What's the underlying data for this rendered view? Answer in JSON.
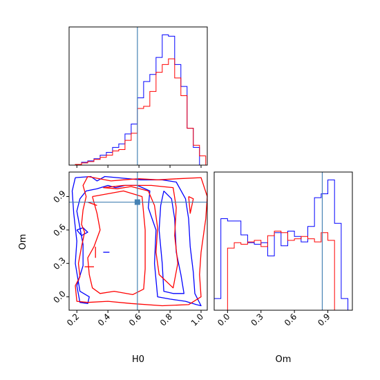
{
  "chart_data": {
    "type": "corner",
    "colors": {
      "series_a": "#0000ff",
      "series_b": "#ff0000",
      "truth": "#4682b4",
      "frame": "#000000"
    },
    "parameters": [
      "H0",
      "Om"
    ],
    "truth": {
      "H0": 0.59,
      "Om": 0.85
    },
    "H0_axis": {
      "label": "H0",
      "range": [
        0.15,
        1.04
      ],
      "ticks": [
        0.2,
        0.4,
        0.6,
        0.8,
        1.0
      ],
      "tick_labels": [
        "0.2",
        "0.4",
        "0.6",
        "0.8",
        "1.0"
      ]
    },
    "Om_axis": {
      "label": "Om",
      "range": [
        -0.12,
        1.12
      ],
      "ticks": [
        0.0,
        0.3,
        0.6,
        0.9
      ],
      "tick_labels": [
        "0.0",
        "0.3",
        "0.6",
        "0.9"
      ]
    },
    "hist_H0": {
      "bin_edges": [
        0.15,
        0.19,
        0.23,
        0.27,
        0.31,
        0.35,
        0.39,
        0.43,
        0.47,
        0.51,
        0.55,
        0.59,
        0.63,
        0.67,
        0.71,
        0.75,
        0.79,
        0.83,
        0.87,
        0.91,
        0.95,
        0.99,
        1.03
      ],
      "series": [
        {
          "values": [
            0,
            1,
            4,
            6,
            9,
            14,
            18,
            25,
            30,
            44,
            58,
            95,
            118,
            128,
            152,
            184,
            182,
            142,
            111,
            52,
            25,
            0
          ]
        },
        {
          "values": [
            0,
            1,
            3,
            5,
            8,
            11,
            14,
            20,
            22,
            35,
            45,
            80,
            83,
            104,
            131,
            142,
            150,
            123,
            98,
            52,
            28,
            13
          ]
        }
      ]
    },
    "hist_Om": {
      "bin_edges": [
        -0.12,
        -0.06,
        0.0,
        0.06,
        0.12,
        0.18,
        0.24,
        0.3,
        0.36,
        0.42,
        0.48,
        0.54,
        0.6,
        0.66,
        0.72,
        0.78,
        0.84,
        0.9,
        0.96,
        1.02,
        1.08,
        1.12
      ],
      "series": [
        {
          "values": [
            15,
            118,
            115,
            115,
            97,
            87,
            85,
            87,
            70,
            100,
            83,
            102,
            95,
            88,
            108,
            145,
            150,
            168,
            112,
            15,
            0
          ]
        },
        {
          "values": [
            0,
            0,
            80,
            87,
            85,
            88,
            90,
            82,
            96,
            102,
            100,
            90,
            92,
            95,
            92,
            88,
            100,
            90,
            0,
            0,
            0
          ]
        }
      ]
    },
    "contours": {
      "series_a": [
        [
          [
            0.19,
            1.07
          ],
          [
            0.29,
            1.08
          ],
          [
            0.33,
            1.04
          ],
          [
            0.38,
            1.08
          ],
          [
            0.46,
            1.07
          ],
          [
            0.61,
            1.05
          ],
          [
            0.75,
            1.05
          ],
          [
            0.84,
            1.03
          ],
          [
            0.9,
            0.88
          ],
          [
            0.92,
            0.7
          ],
          [
            0.93,
            0.45
          ],
          [
            0.95,
            0.22
          ],
          [
            0.96,
            0.03
          ],
          [
            1.0,
            -0.08
          ],
          [
            0.97,
            -0.07
          ],
          [
            0.9,
            -0.04
          ],
          [
            0.8,
            -0.02
          ],
          [
            0.72,
            0.0
          ],
          [
            0.7,
            0.3
          ],
          [
            0.71,
            0.6
          ],
          [
            0.66,
            0.8
          ],
          [
            0.67,
            0.95
          ],
          [
            0.59,
            1.0
          ],
          [
            0.51,
            1.0
          ],
          [
            0.45,
            0.98
          ],
          [
            0.4,
            1.0
          ],
          [
            0.33,
            0.97
          ],
          [
            0.26,
            0.95
          ],
          [
            0.22,
            0.88
          ],
          [
            0.2,
            0.77
          ],
          [
            0.22,
            0.62
          ],
          [
            0.24,
            0.47
          ],
          [
            0.24,
            0.28
          ],
          [
            0.2,
            0.1
          ],
          [
            0.22,
            -0.05
          ],
          [
            0.27,
            -0.06
          ],
          [
            0.28,
            0.0
          ],
          [
            0.22,
            0.05
          ],
          [
            0.19,
            0.3
          ],
          [
            0.2,
            0.5
          ],
          [
            0.18,
            0.75
          ],
          [
            0.17,
            0.95
          ],
          [
            0.19,
            1.07
          ]
        ],
        [
          [
            0.76,
            0.95
          ],
          [
            0.81,
            0.88
          ],
          [
            0.83,
            0.7
          ],
          [
            0.84,
            0.4
          ],
          [
            0.87,
            0.2
          ],
          [
            0.89,
            0.03
          ],
          [
            0.82,
            0.03
          ],
          [
            0.76,
            0.05
          ],
          [
            0.75,
            0.3
          ],
          [
            0.73,
            0.6
          ],
          [
            0.74,
            0.82
          ],
          [
            0.76,
            0.95
          ]
        ],
        [
          [
            0.2,
            0.6
          ],
          [
            0.24,
            0.62
          ],
          [
            0.27,
            0.58
          ],
          [
            0.23,
            0.55
          ],
          [
            0.2,
            0.6
          ]
        ],
        [
          [
            0.37,
            0.4
          ],
          [
            0.41,
            0.4
          ]
        ]
      ],
      "series_b": [
        [
          [
            0.27,
            1.08
          ],
          [
            0.42,
            1.04
          ],
          [
            0.5,
            1.05
          ],
          [
            0.6,
            1.06
          ],
          [
            0.72,
            1.05
          ],
          [
            0.85,
            1.06
          ],
          [
            1.0,
            1.07
          ],
          [
            1.04,
            0.9
          ],
          [
            1.03,
            0.7
          ],
          [
            1.0,
            0.4
          ],
          [
            0.99,
            0.2
          ],
          [
            1.0,
            0.0
          ],
          [
            0.92,
            -0.07
          ],
          [
            0.75,
            -0.08
          ],
          [
            0.55,
            -0.06
          ],
          [
            0.4,
            -0.04
          ],
          [
            0.27,
            -0.05
          ],
          [
            0.2,
            -0.04
          ],
          [
            0.19,
            0.1
          ],
          [
            0.22,
            0.18
          ],
          [
            0.21,
            0.3
          ],
          [
            0.23,
            0.45
          ],
          [
            0.25,
            0.58
          ],
          [
            0.23,
            0.65
          ],
          [
            0.24,
            0.78
          ],
          [
            0.26,
            0.9
          ],
          [
            0.24,
            1.0
          ],
          [
            0.27,
            1.08
          ]
        ],
        [
          [
            0.37,
            0.98
          ],
          [
            0.46,
            0.97
          ],
          [
            0.55,
            0.99
          ],
          [
            0.66,
            0.95
          ],
          [
            0.7,
            0.82
          ],
          [
            0.72,
            0.62
          ],
          [
            0.71,
            0.4
          ],
          [
            0.73,
            0.2
          ],
          [
            0.82,
            0.08
          ],
          [
            0.85,
            0.3
          ],
          [
            0.83,
            0.55
          ],
          [
            0.84,
            0.8
          ],
          [
            0.82,
            0.98
          ],
          [
            0.68,
            1.0
          ],
          [
            0.5,
            1.0
          ],
          [
            0.37,
            0.98
          ]
        ],
        [
          [
            0.3,
            0.9
          ],
          [
            0.33,
            0.75
          ],
          [
            0.35,
            0.6
          ],
          [
            0.31,
            0.45
          ],
          [
            0.27,
            0.35
          ],
          [
            0.28,
            0.2
          ],
          [
            0.3,
            0.08
          ],
          [
            0.35,
            0.03
          ],
          [
            0.44,
            0.05
          ],
          [
            0.56,
            0.02
          ],
          [
            0.63,
            0.07
          ],
          [
            0.64,
            0.25
          ],
          [
            0.64,
            0.6
          ],
          [
            0.62,
            0.9
          ],
          [
            0.5,
            0.95
          ],
          [
            0.3,
            0.9
          ]
        ],
        [
          [
            0.27,
            0.85
          ],
          [
            0.33,
            0.82
          ]
        ],
        [
          [
            0.32,
            0.45
          ],
          [
            0.32,
            0.35
          ]
        ],
        [
          [
            0.25,
            0.27
          ],
          [
            0.31,
            0.27
          ]
        ],
        [
          [
            0.92,
            0.9
          ],
          [
            0.93,
            0.75
          ],
          [
            0.95,
            0.88
          ],
          [
            0.92,
            0.9
          ]
        ]
      ]
    }
  }
}
